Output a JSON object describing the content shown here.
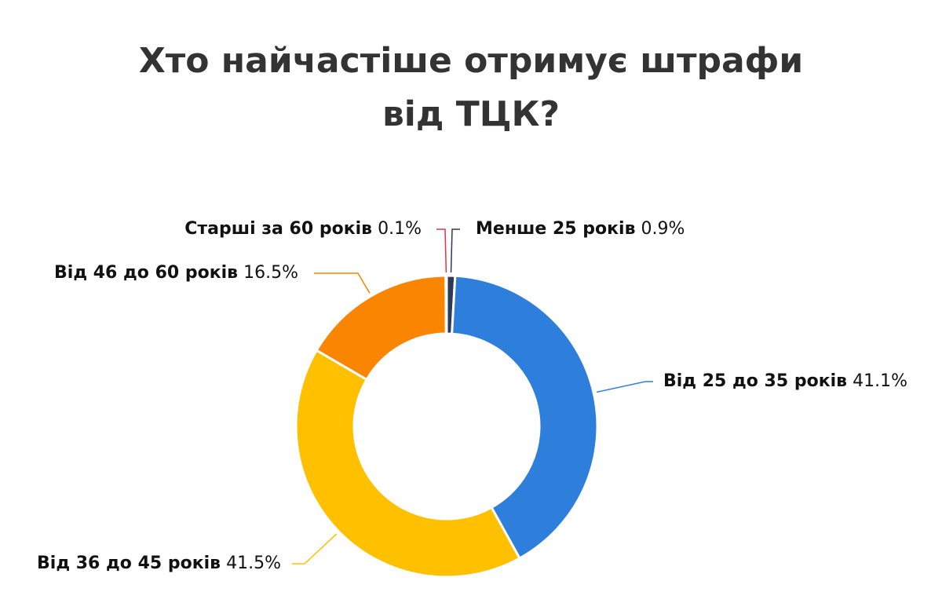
{
  "chart_data": {
    "type": "donut",
    "title": "Хто найчастіше отримує штрафи від ТЦК?",
    "categories": [
      "Менше 25 років",
      "Від 25 до 35 років",
      "Від 36 до 45 років",
      "Від 46 до 60 років",
      "Старші за 60 років"
    ],
    "values": [
      0.9,
      41.1,
      41.5,
      16.5,
      0.1
    ],
    "value_labels": [
      "0.9%",
      "41.1%",
      "41.5%",
      "16.5%",
      "0.1%"
    ],
    "colors": [
      "#2d3a55",
      "#2e7fdb",
      "#ffc000",
      "#f98500",
      "#e0334a"
    ]
  }
}
